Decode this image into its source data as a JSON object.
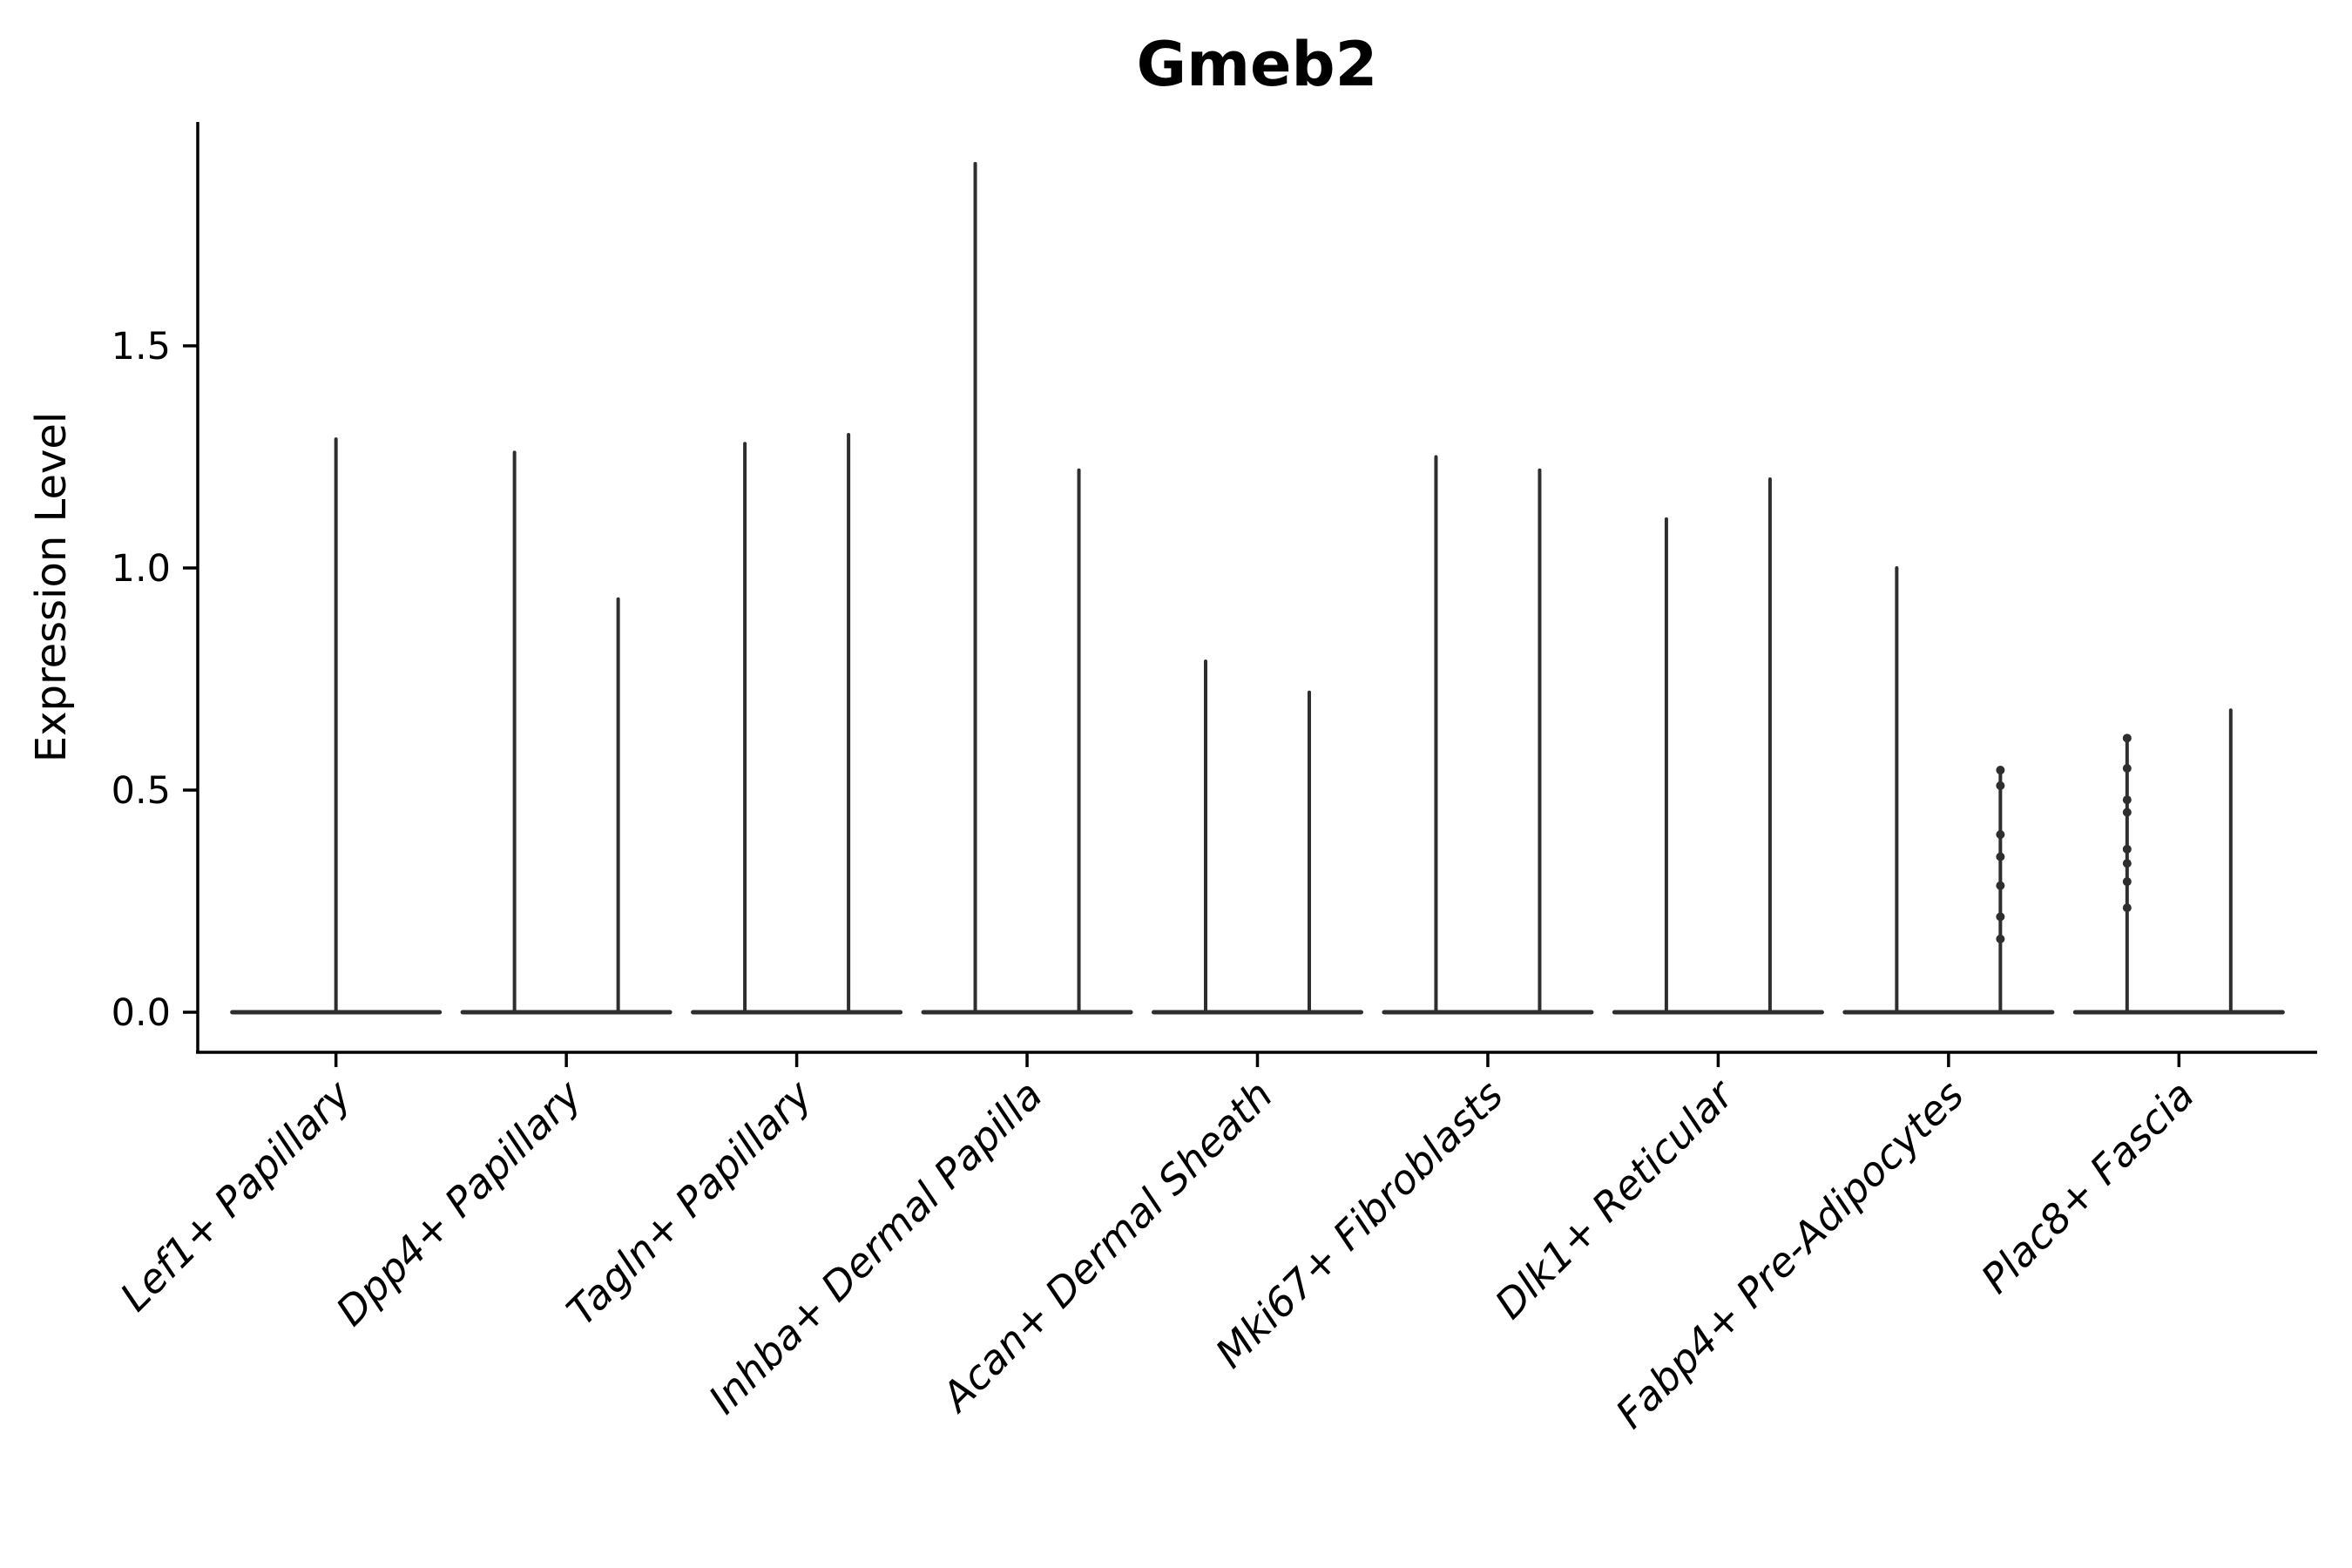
{
  "figure": {
    "title": "Gmeb2"
  },
  "y_axis": {
    "label": "Expression Level",
    "tick_labels": [
      "0.0",
      "0.5",
      "1.0",
      "1.5"
    ],
    "tick_values": [
      0,
      0.5,
      1.0,
      1.5
    ]
  },
  "x_axis": {
    "tick_labels": [
      "Lef1+ Papillary",
      "Dpp4+ Papillary",
      "Tagln+ Papillary",
      "Inhba+ Dermal Papilla",
      "Acan+ Dermal Sheath",
      "Mki67+ Fibroblasts",
      "Dlk1+ Reticular",
      "Fabp4+ Pre-Adipocytes",
      "Plac8+ Fascia"
    ]
  },
  "chart_data": {
    "type": "violin",
    "title": "Gmeb2",
    "xlabel": "",
    "ylabel": "Expression Level",
    "ylim": [
      -0.09,
      2.0
    ],
    "yticks": [
      0,
      0.5,
      1.0,
      1.5
    ],
    "grid": false,
    "legend": "none",
    "categories": [
      "Lef1+ Papillary",
      "Dpp4+ Papillary",
      "Tagln+ Papillary",
      "Inhba+ Dermal Papilla",
      "Acan+ Dermal Sheath",
      "Mki67+ Fibroblasts",
      "Dlk1+ Reticular",
      "Fabp4+ Pre-Adipocytes",
      "Plac8+ Fascia"
    ],
    "description": "Zero-inflated expression violins: each violin is a wide flat base at expression 0 with a thin density spike up to the max expressed value. First category has a single full-width violin; all others have two dodged violins.",
    "series": [
      {
        "category": "Lef1+ Papillary",
        "violin_maxima": [
          1.29
        ],
        "jitter_points": [
          []
        ]
      },
      {
        "category": "Dpp4+ Papillary",
        "violin_maxima": [
          1.26,
          0.93
        ],
        "jitter_points": [
          [],
          []
        ]
      },
      {
        "category": "Tagln+ Papillary",
        "violin_maxima": [
          1.28,
          1.3
        ],
        "jitter_points": [
          [],
          []
        ]
      },
      {
        "category": "Inhba+ Dermal Papilla",
        "violin_maxima": [
          1.91,
          1.22
        ],
        "jitter_points": [
          [],
          []
        ]
      },
      {
        "category": "Acan+ Dermal Sheath",
        "violin_maxima": [
          0.79,
          0.72
        ],
        "jitter_points": [
          [],
          []
        ]
      },
      {
        "category": "Mki67+ Fibroblasts",
        "violin_maxima": [
          1.25,
          1.22
        ],
        "jitter_points": [
          [],
          []
        ]
      },
      {
        "category": "Dlk1+ Reticular",
        "violin_maxima": [
          1.11,
          1.2
        ],
        "jitter_points": [
          [],
          []
        ]
      },
      {
        "category": "Fabp4+ Pre-Adipocytes",
        "violin_maxima": [
          1.0,
          0.55
        ],
        "jitter_points": [
          [],
          [
            0.545,
            0.51,
            0.4,
            0.35,
            0.285,
            0.215,
            0.165
          ]
        ]
      },
      {
        "category": "Plac8+ Fascia",
        "violin_maxima": [
          0.62,
          0.68
        ],
        "jitter_points": [
          [
            0.617,
            0.549,
            0.478,
            0.45,
            0.367,
            0.335,
            0.294,
            0.235
          ],
          []
        ]
      }
    ],
    "style": {
      "violin_color": "#2e2e2e",
      "axis_color": "#000000",
      "text_color": "#000000",
      "background": "#ffffff"
    }
  }
}
